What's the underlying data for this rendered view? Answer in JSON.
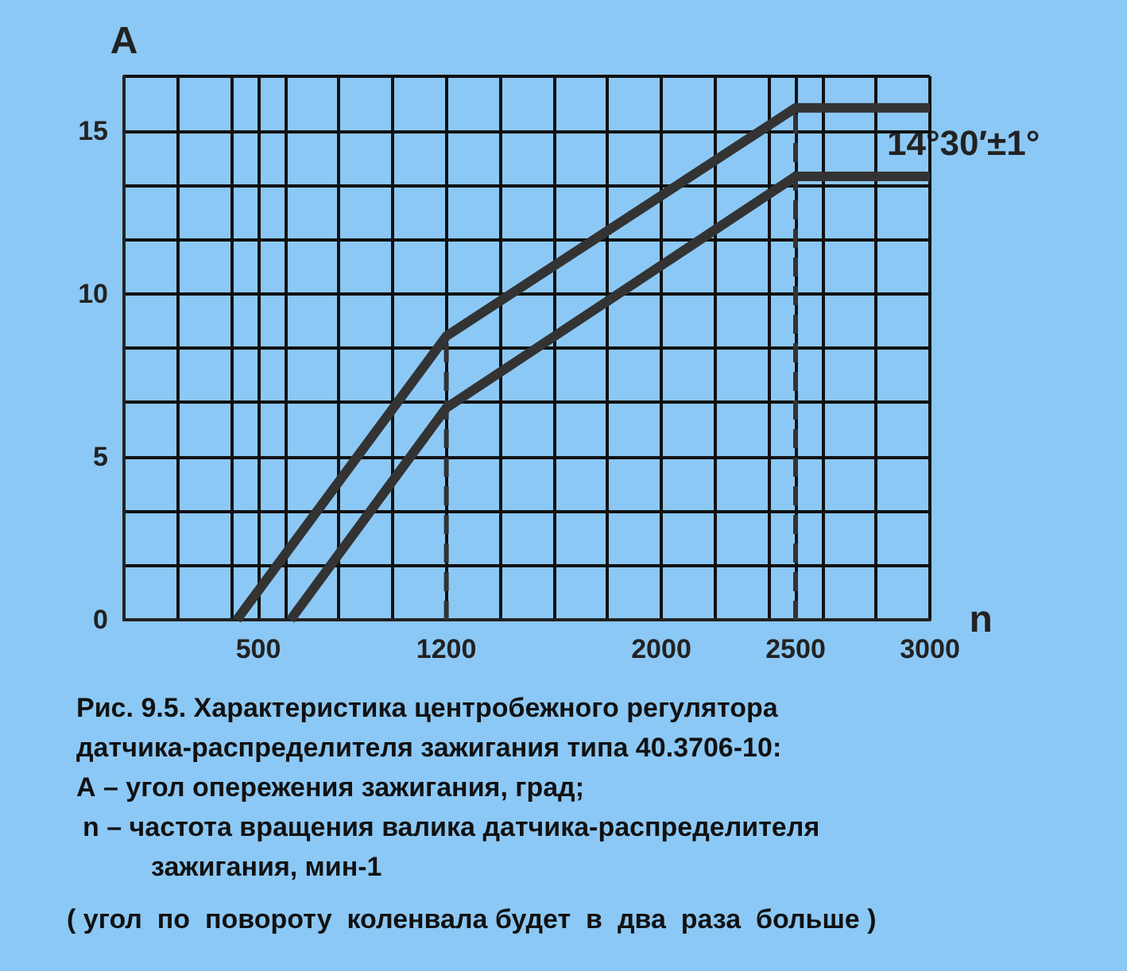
{
  "chart_data": {
    "type": "line",
    "xlabel": "n",
    "ylabel": "A",
    "series": [
      {
        "color": "#333333",
        "x": [
          420,
          1200,
          2500,
          3000
        ],
        "values": [
          0,
          8.7,
          15.7,
          15.7
        ]
      },
      {
        "color": "#333333",
        "x": [
          620,
          1200,
          2500,
          3000
        ],
        "values": [
          0,
          6.5,
          13.6,
          13.6
        ]
      },
      {
        "color": "#333333",
        "line_style": "dashed",
        "x": [
          1200,
          1200
        ],
        "values": [
          0,
          8.7
        ]
      },
      {
        "color": "#333333",
        "line_style": "dashed",
        "x": [
          2500,
          2500
        ],
        "values": [
          0,
          15.7
        ]
      }
    ],
    "xlim": [
      0,
      3000
    ],
    "xticks": [
      {
        "value": 0,
        "label": null
      },
      {
        "value": 200,
        "label": null
      },
      {
        "value": 400,
        "label": null
      },
      500,
      {
        "value": 600,
        "label": null
      },
      {
        "value": 800,
        "label": null
      },
      {
        "value": 1000,
        "label": null
      },
      1200,
      {
        "value": 1400,
        "label": null
      },
      {
        "value": 1600,
        "label": null
      },
      {
        "value": 1800,
        "label": null
      },
      2000,
      {
        "value": 2200,
        "label": null
      },
      {
        "value": 2400,
        "label": null
      },
      2500,
      {
        "value": 2600,
        "label": null
      },
      {
        "value": 2800,
        "label": null
      },
      3000
    ],
    "ylim": [
      0,
      16.67
    ],
    "yticks": [
      0,
      {
        "value": 1.67,
        "label": null
      },
      {
        "value": 3.33,
        "label": null
      },
      5,
      {
        "value": 6.67,
        "label": null
      },
      {
        "value": 8.33,
        "label": null
      },
      10,
      {
        "value": 11.67,
        "label": null
      },
      {
        "value": 13.33,
        "label": null
      },
      15,
      {
        "value": 16.67,
        "label": null
      }
    ],
    "grid": true,
    "marker": "none",
    "line_style": "solid",
    "annotations": [
      "14°30′±1°",
      "Рис. 9.5. Характеристика центробежного регулятора",
      "датчика-распределителя зажигания типа 40.3706-10:",
      "А – угол опережения зажигания, град;",
      "n – частота вращения валика датчика-распределителя",
      "зажигания, мин-1",
      "( угол  по  повороту  коленвала будет  в  два  раза  больше )"
    ]
  }
}
